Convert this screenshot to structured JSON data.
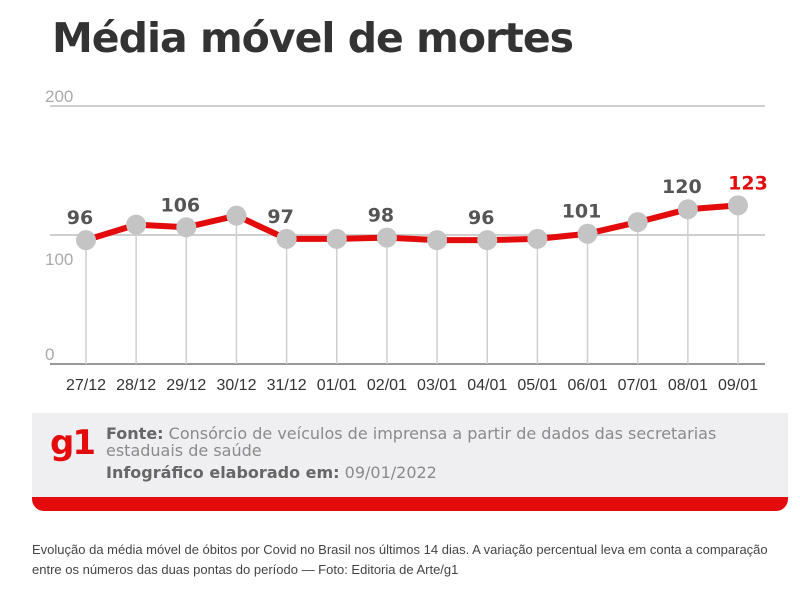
{
  "chart_data": {
    "type": "line",
    "title": "Média móvel de mortes",
    "categories": [
      "27/12",
      "28/12",
      "29/12",
      "30/12",
      "31/12",
      "01/01",
      "02/01",
      "03/01",
      "04/01",
      "05/01",
      "06/01",
      "07/01",
      "08/01",
      "09/01"
    ],
    "values": [
      96,
      108,
      106,
      115,
      97,
      97,
      98,
      96,
      96,
      97,
      101,
      110,
      120,
      123
    ],
    "data_labels": {
      "0": "96",
      "2": "106",
      "4": "97",
      "6": "98",
      "8": "96",
      "10": "101",
      "12": "120",
      "13": "123"
    },
    "yticks": [
      "0",
      "100",
      "200"
    ],
    "ylim": [
      0,
      200
    ],
    "grid": true,
    "line_color": "#e30b0b",
    "marker_color": "#c4c4c4",
    "highlight_color": "#e30b0b"
  },
  "source": {
    "logo": "g1",
    "fonte_label": "Fonte:",
    "fonte_text": "Consórcio de veículos de imprensa a partir de dados das secretarias estaduais de saúde",
    "date_label": "Infográfico elaborado em:",
    "date_value": "09/01/2022"
  },
  "caption": "Evolução da média móvel de óbitos por Covid no Brasil nos últimos 14 dias. A variação percentual leva em conta a comparação entre os números das duas pontas do período — Foto: Editoria de Arte/g1"
}
